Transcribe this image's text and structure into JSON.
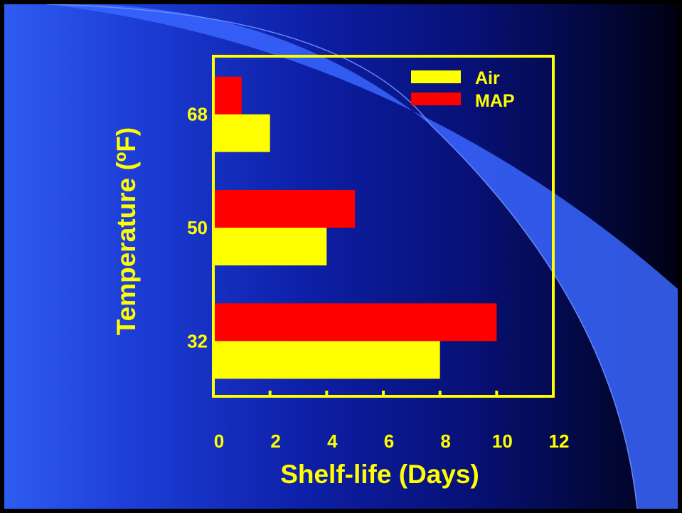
{
  "chart_data": {
    "type": "bar",
    "orientation": "horizontal",
    "categories": [
      "32",
      "50",
      "68"
    ],
    "series": [
      {
        "name": "Air",
        "values": [
          8,
          4,
          2
        ],
        "color": "#ffff00"
      },
      {
        "name": "MAP",
        "values": [
          10,
          5,
          1
        ],
        "color": "#ff0000"
      }
    ],
    "xlabel": "Shelf-life (Days)",
    "ylabel": "Temperature (ºF)",
    "xlim": [
      0,
      12
    ],
    "xticks": [
      "0",
      "2",
      "4",
      "6",
      "8",
      "10",
      "12"
    ],
    "legend_position": "top-right",
    "grid": false,
    "axis_color": "#ffff00"
  }
}
